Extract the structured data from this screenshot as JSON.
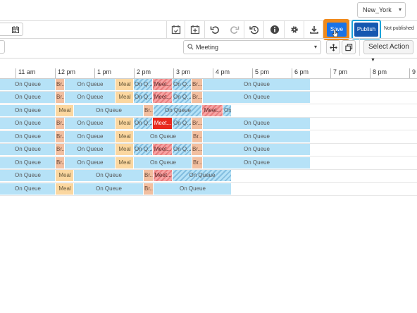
{
  "header": {
    "timezone": "New_York"
  },
  "toolbar": {
    "save_label": "Save",
    "publish_label": "Publish",
    "publish_status": "Not published"
  },
  "filters": {
    "activity": "Meeting",
    "select_action": "Select Action"
  },
  "timeline": {
    "labels": [
      "11 am",
      "12 pm",
      "1 pm",
      "2 pm",
      "3 pm",
      "4 pm",
      "5 pm",
      "6 pm",
      "7 pm",
      "8 pm",
      "9"
    ]
  },
  "schedule": {
    "rows": [
      [
        [
          "q",
          "On Queue"
        ],
        [
          "b",
          "Br..."
        ],
        [
          "q",
          "On Queue"
        ],
        [
          "m",
          "Meal"
        ],
        [
          "h",
          "On Q..."
        ],
        [
          "hm",
          "Meet..."
        ],
        [
          "h",
          "On Q..."
        ],
        [
          "b",
          "Br..."
        ],
        [
          "q",
          "On Queue"
        ]
      ],
      [
        [
          "q",
          "On Queue"
        ],
        [
          "b",
          "Br..."
        ],
        [
          "q",
          "On Queue"
        ],
        [
          "m",
          "Meal"
        ],
        [
          "h",
          "On Q..."
        ],
        [
          "hm",
          "Meet..."
        ],
        [
          "h",
          "On Q..."
        ],
        [
          "b",
          "Br..."
        ],
        [
          "q",
          "On Queue"
        ]
      ],
      [
        [
          "q",
          "On Queue"
        ],
        [
          "m",
          "Meal"
        ],
        [
          "q",
          "On Queue"
        ],
        [
          "b",
          "Br..."
        ],
        [
          "h",
          "On Queue"
        ],
        [
          "hm",
          "Meet..."
        ],
        [
          "h",
          "On"
        ]
      ],
      [
        [
          "q",
          "On Queue"
        ],
        [
          "b",
          "Br..."
        ],
        [
          "q",
          "On Queue"
        ],
        [
          "m",
          "Meal"
        ],
        [
          "h",
          "On Q..."
        ],
        [
          "mtsel",
          "Meet..."
        ],
        [
          "h",
          "On Q..."
        ],
        [
          "b",
          "Br..."
        ],
        [
          "q",
          "On Queue"
        ]
      ],
      [
        [
          "q",
          "On Queue"
        ],
        [
          "b",
          "Br..."
        ],
        [
          "q",
          "On Queue"
        ],
        [
          "m",
          "Meal"
        ],
        [
          "q",
          "On Queue"
        ],
        [
          "b",
          "Br..."
        ],
        [
          "q",
          "On Queue"
        ]
      ],
      [
        [
          "q",
          "On Queue"
        ],
        [
          "b",
          "Br..."
        ],
        [
          "q",
          "On Queue"
        ],
        [
          "m",
          "Meal"
        ],
        [
          "h",
          "On Q..."
        ],
        [
          "hm",
          "Meet..."
        ],
        [
          "h",
          "On Q..."
        ],
        [
          "b",
          "Br..."
        ],
        [
          "q",
          "On Queue"
        ]
      ],
      [
        [
          "q",
          "On Queue"
        ],
        [
          "b",
          "Br..."
        ],
        [
          "q",
          "On Queue"
        ],
        [
          "m",
          "Meal"
        ],
        [
          "q",
          "On Queue"
        ],
        [
          "b",
          "Br..."
        ],
        [
          "q",
          "On Queue"
        ]
      ],
      [
        [
          "q",
          "On Queue"
        ],
        [
          "m",
          "Meal"
        ],
        [
          "q",
          "On Queue"
        ],
        [
          "b",
          "Br..."
        ],
        [
          "hm",
          "Meet..."
        ],
        [
          "h",
          "On Queue"
        ]
      ],
      [
        [
          "q",
          "On Queue"
        ],
        [
          "m",
          "Meal"
        ],
        [
          "q",
          "On Queue"
        ],
        [
          "b",
          "Br..."
        ],
        [
          "q",
          "On Queue"
        ]
      ]
    ]
  },
  "colors": {
    "save_highlight": "#f08a1c",
    "publish_highlight": "#1aa3d9",
    "button_blue": "#1a73e8",
    "publish_blue": "#1558b0",
    "on_queue": "#b6e2f7",
    "break": "#f2bfa0",
    "meal": "#fbd7a0",
    "meeting": "#f38a8a",
    "meeting_selected": "#e8291d"
  },
  "icons": [
    "calendar-icon",
    "calendar-check-icon",
    "calendar-add-icon",
    "undo-icon",
    "redo-icon",
    "history-icon",
    "info-icon",
    "settings-icon",
    "download-icon",
    "search-icon",
    "move-icon",
    "copy-icon",
    "chevron-down-icon"
  ]
}
